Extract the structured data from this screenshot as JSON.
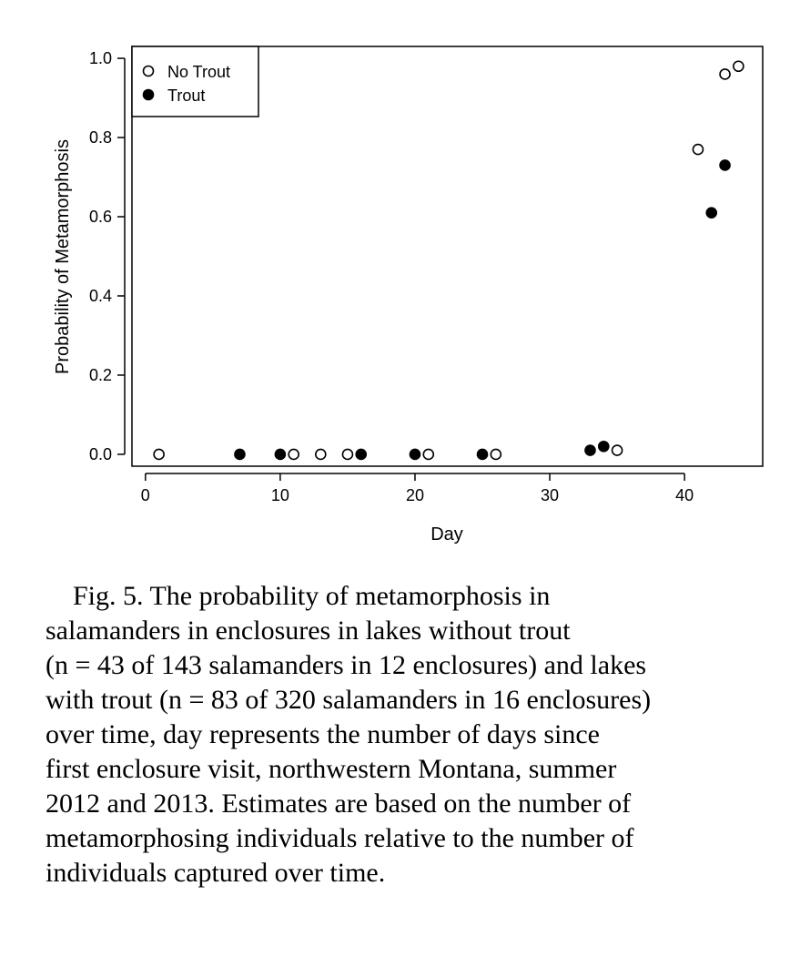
{
  "chart_data": {
    "type": "scatter",
    "xlabel": "Day",
    "ylabel": "Probability of Metamorphosis",
    "xlim": [
      -1,
      45.8
    ],
    "ylim": [
      -0.03,
      1.03
    ],
    "xticks": [
      0,
      10,
      20,
      30,
      40
    ],
    "yticks": [
      0.0,
      0.2,
      0.4,
      0.6,
      0.8,
      1.0
    ],
    "xtick_labels": [
      "0",
      "10",
      "20",
      "30",
      "40"
    ],
    "ytick_labels": [
      "0.0",
      "0.2",
      "0.4",
      "0.6",
      "0.8",
      "1.0"
    ],
    "grid": false,
    "legend_position": "top-left",
    "series": [
      {
        "name": "No Trout",
        "marker": "open-circle",
        "x": [
          1,
          11,
          13,
          15,
          21,
          26,
          35,
          41,
          43,
          44
        ],
        "y": [
          0.0,
          0.0,
          0.0,
          0.0,
          0.0,
          0.0,
          0.01,
          0.77,
          0.96,
          0.98
        ]
      },
      {
        "name": "Trout",
        "marker": "filled-circle",
        "x": [
          7,
          10,
          16,
          20,
          25,
          33,
          34,
          42,
          43
        ],
        "y": [
          0.0,
          0.0,
          0.0,
          0.0,
          0.0,
          0.01,
          0.02,
          0.61,
          0.73
        ]
      }
    ]
  },
  "caption": {
    "fig_label": "Fig. 5.",
    "lines": [
      "Fig. 5. The probability of metamorphosis in",
      "salamanders in enclosures in lakes without trout",
      "(n = 43 of 143 salamanders in 12 enclosures) and lakes",
      "with trout (n = 83 of 320 salamanders in 16 enclosures)",
      "over time, day represents the number of days since",
      "first enclosure visit, northwestern Montana, summer",
      "2012 and 2013. Estimates are based on the number of",
      "metamorphosing individuals relative to the number of",
      "individuals captured over time."
    ]
  }
}
